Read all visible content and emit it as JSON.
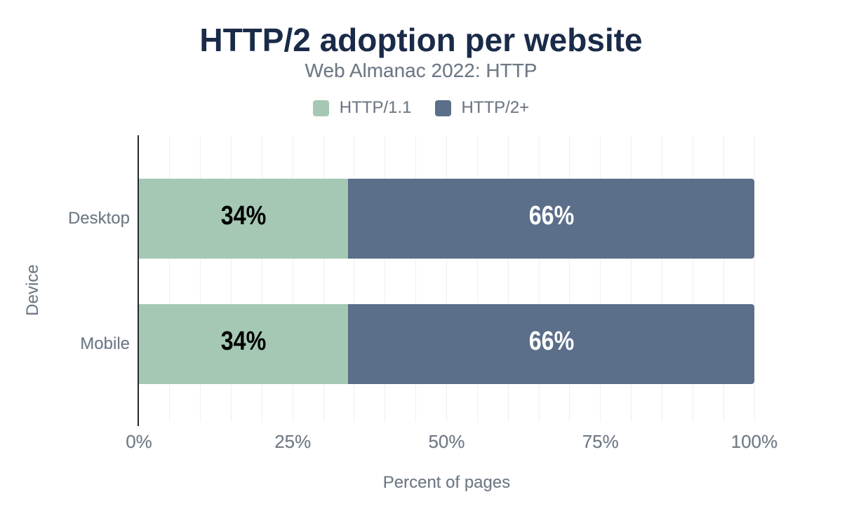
{
  "title": "HTTP/2 adoption per website",
  "subtitle": "Web Almanac 2022: HTTP",
  "colors": {
    "title_text": "#1a2b49",
    "muted_text": "#6e7985",
    "gridline": "#efefef",
    "axis_line": "#23272d",
    "label_on_series1": "#000000",
    "label_on_series2": "#ffffff"
  },
  "chart_data": {
    "type": "bar",
    "orientation": "horizontal",
    "stacked": true,
    "title": "HTTP/2 adoption per website",
    "subtitle": "Web Almanac 2022: HTTP",
    "categories": [
      "Desktop",
      "Mobile"
    ],
    "series": [
      {
        "name": "HTTP/1.1",
        "color": "#a4c8b4",
        "values": [
          34,
          34
        ]
      },
      {
        "name": "HTTP/2+",
        "color": "#5b6e8a",
        "values": [
          66,
          66
        ]
      }
    ],
    "xlabel": "Percent of pages",
    "ylabel": "Device",
    "x_ticks": [
      "0%",
      "25%",
      "50%",
      "75%",
      "100%"
    ],
    "xlim": [
      0,
      100
    ],
    "grid_step_percent": 5,
    "legend_position": "top",
    "value_label_format": "{value}%"
  }
}
